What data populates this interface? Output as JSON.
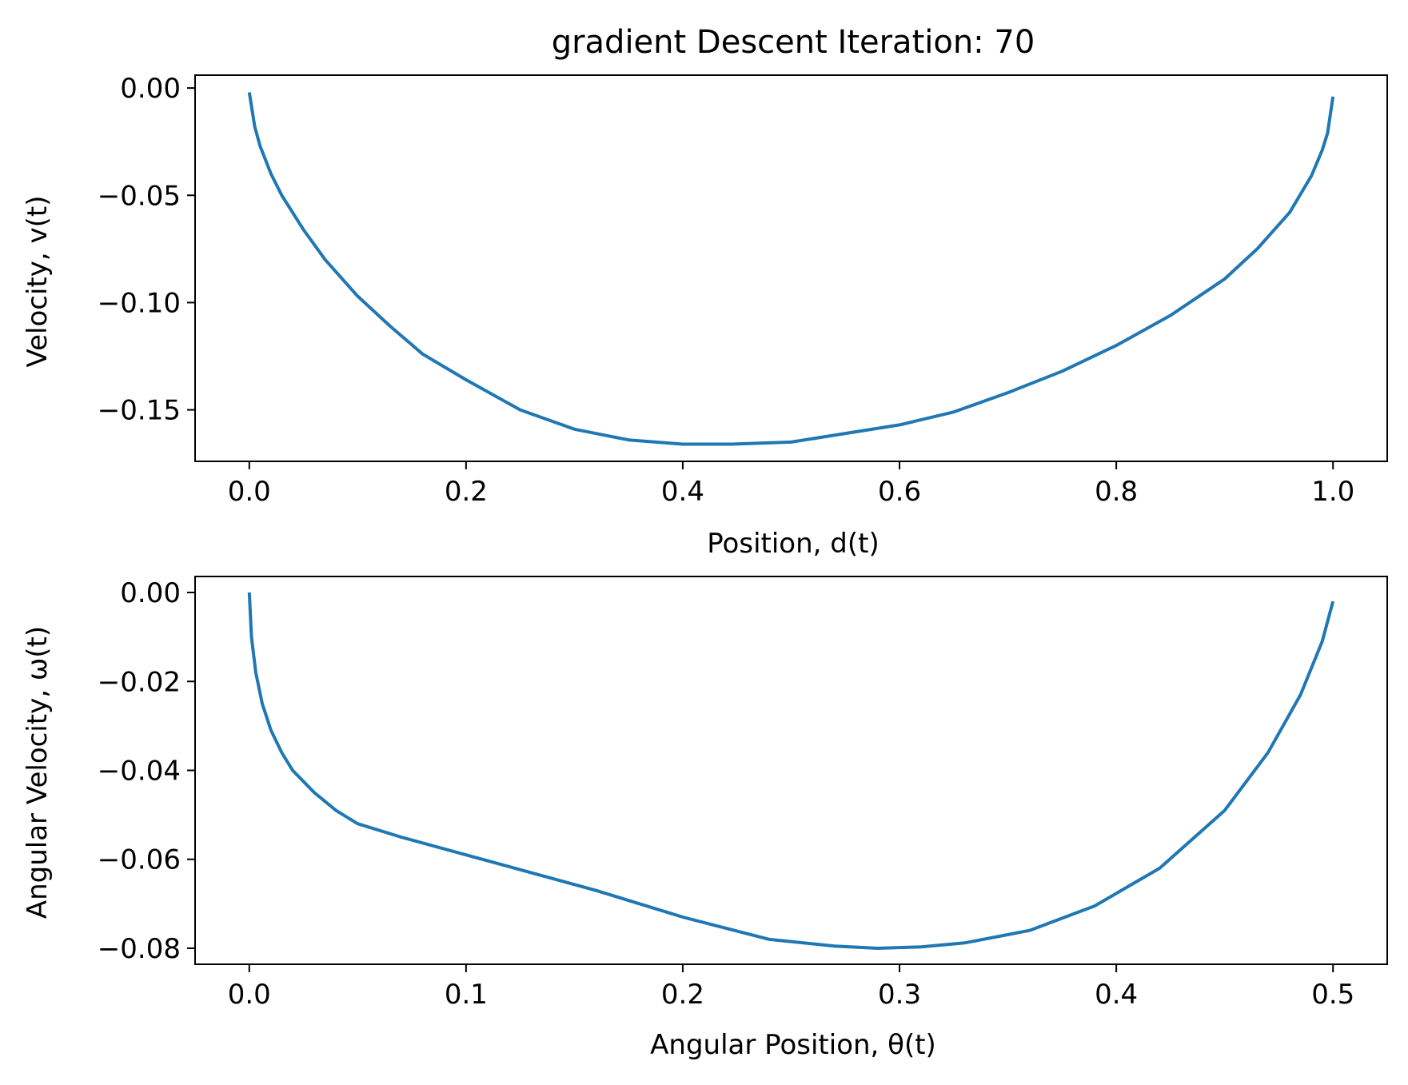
{
  "figure": {
    "title": "gradient Descent Iteration: 70"
  },
  "colors": {
    "line": "#1f77b4",
    "axes": "#000000",
    "background": "#ffffff"
  },
  "chart_data": [
    {
      "type": "line",
      "title": "gradient Descent Iteration: 70",
      "xlabel": "Position, d(t)",
      "ylabel": "Velocity, v(t)",
      "xlim": [
        -0.05,
        1.05
      ],
      "ylim": [
        -0.174,
        0.006
      ],
      "grid": false,
      "xticks": [
        0.0,
        0.2,
        0.4,
        0.6,
        0.8,
        1.0
      ],
      "xtick_labels": [
        "0.0",
        "0.2",
        "0.4",
        "0.6",
        "0.8",
        "1.0"
      ],
      "yticks": [
        0.0,
        -0.05,
        -0.1,
        -0.15
      ],
      "ytick_labels": [
        "0.00",
        "−0.05",
        "−0.10",
        "−0.15"
      ],
      "series": [
        {
          "x": [
            0.0,
            0.005,
            0.01,
            0.02,
            0.03,
            0.05,
            0.07,
            0.1,
            0.13,
            0.16,
            0.2,
            0.25,
            0.3,
            0.35,
            0.4,
            0.445,
            0.5,
            0.55,
            0.6,
            0.65,
            0.7,
            0.75,
            0.8,
            0.85,
            0.9,
            0.93,
            0.96,
            0.98,
            0.99,
            0.995,
            1.0
          ],
          "y": [
            -0.002,
            -0.018,
            -0.027,
            -0.04,
            -0.05,
            -0.066,
            -0.08,
            -0.097,
            -0.111,
            -0.124,
            -0.136,
            -0.15,
            -0.159,
            -0.164,
            -0.166,
            -0.166,
            -0.165,
            -0.161,
            -0.157,
            -0.151,
            -0.142,
            -0.132,
            -0.12,
            -0.106,
            -0.089,
            -0.075,
            -0.058,
            -0.041,
            -0.029,
            -0.021,
            -0.004
          ]
        }
      ]
    },
    {
      "type": "line",
      "xlabel": "Angular Position, θ(t)",
      "ylabel": "Angular Velocity, ω(t)",
      "xlim": [
        -0.025,
        0.525
      ],
      "ylim": [
        -0.0836,
        0.0036
      ],
      "grid": false,
      "xticks": [
        0.0,
        0.1,
        0.2,
        0.3,
        0.4,
        0.5
      ],
      "xtick_labels": [
        "0.0",
        "0.1",
        "0.2",
        "0.3",
        "0.4",
        "0.5"
      ],
      "yticks": [
        0.0,
        -0.02,
        -0.04,
        -0.06,
        -0.08
      ],
      "ytick_labels": [
        "0.00",
        "−0.02",
        "−0.04",
        "−0.06",
        "−0.08"
      ],
      "series": [
        {
          "x": [
            0.0,
            0.001,
            0.003,
            0.006,
            0.01,
            0.015,
            0.02,
            0.03,
            0.04,
            0.05,
            0.07,
            0.1,
            0.13,
            0.16,
            0.2,
            0.24,
            0.27,
            0.29,
            0.31,
            0.33,
            0.36,
            0.39,
            0.42,
            0.45,
            0.47,
            0.485,
            0.495,
            0.5
          ],
          "y": [
            0.0,
            -0.01,
            -0.018,
            -0.025,
            -0.031,
            -0.036,
            -0.04,
            -0.045,
            -0.049,
            -0.052,
            -0.055,
            -0.059,
            -0.063,
            -0.067,
            -0.073,
            -0.078,
            -0.0795,
            -0.08,
            -0.0797,
            -0.0788,
            -0.076,
            -0.0705,
            -0.062,
            -0.049,
            -0.036,
            -0.023,
            -0.011,
            -0.002
          ]
        }
      ]
    }
  ]
}
